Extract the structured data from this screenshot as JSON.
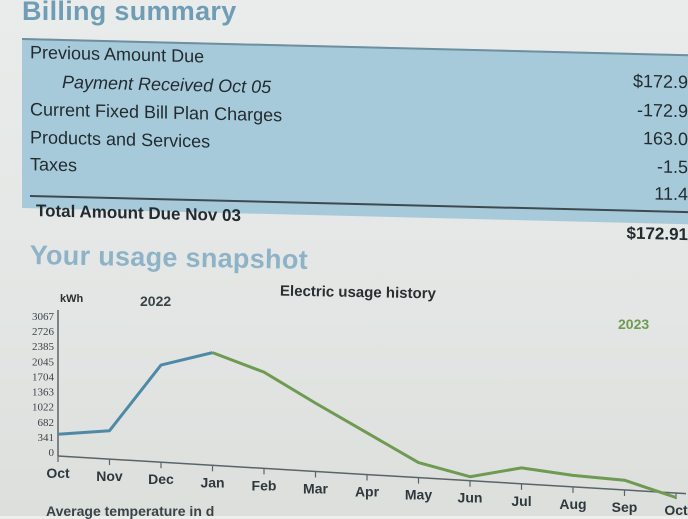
{
  "billing": {
    "title": "Billing summary",
    "rows": [
      {
        "label": "Previous Amount Due",
        "value": "$172.9"
      },
      {
        "label": "Payment Received Oct 05",
        "value": "-172.9"
      },
      {
        "label": "Current Fixed Bill Plan Charges",
        "value": "163.0"
      },
      {
        "label": "Products and Services",
        "value": "-1.5"
      },
      {
        "label": "Taxes",
        "value": "11.4"
      }
    ],
    "total": {
      "label": "Total Amount Due Nov 03",
      "value": "$172.91"
    }
  },
  "usage": {
    "title": "Your usage snapshot",
    "footer_partial": "Average temperature in d"
  },
  "colors": {
    "accent_blue": "#6f9db6",
    "summary_fill": "#a7cadb",
    "line_2022": "#4e8aa6",
    "line_2023": "#6e9a52"
  },
  "chart_data": {
    "type": "line",
    "title": "Electric usage history",
    "ylabel": "kWh",
    "categories": [
      "Oct",
      "Nov",
      "Dec",
      "Jan",
      "Feb",
      "Mar",
      "Apr",
      "May",
      "Jun",
      "Jul",
      "Aug",
      "Sep",
      "Oct"
    ],
    "y_ticks": [
      "0",
      "341",
      "682",
      "1022",
      "1363",
      "1704",
      "2045",
      "2385",
      "2726",
      "3067"
    ],
    "ylim": [
      0,
      3067
    ],
    "year_labels": [
      "2022",
      "2023"
    ],
    "series": [
      {
        "name": "2022",
        "values": [
          400,
          550,
          2100,
          2450,
          null,
          null,
          null,
          null,
          null,
          null,
          null,
          null,
          null
        ]
      },
      {
        "name": "2023",
        "values": [
          null,
          null,
          null,
          2450,
          2080,
          1450,
          850,
          250,
          0,
          270,
          170,
          130,
          -190
        ]
      }
    ],
    "grid": false
  }
}
